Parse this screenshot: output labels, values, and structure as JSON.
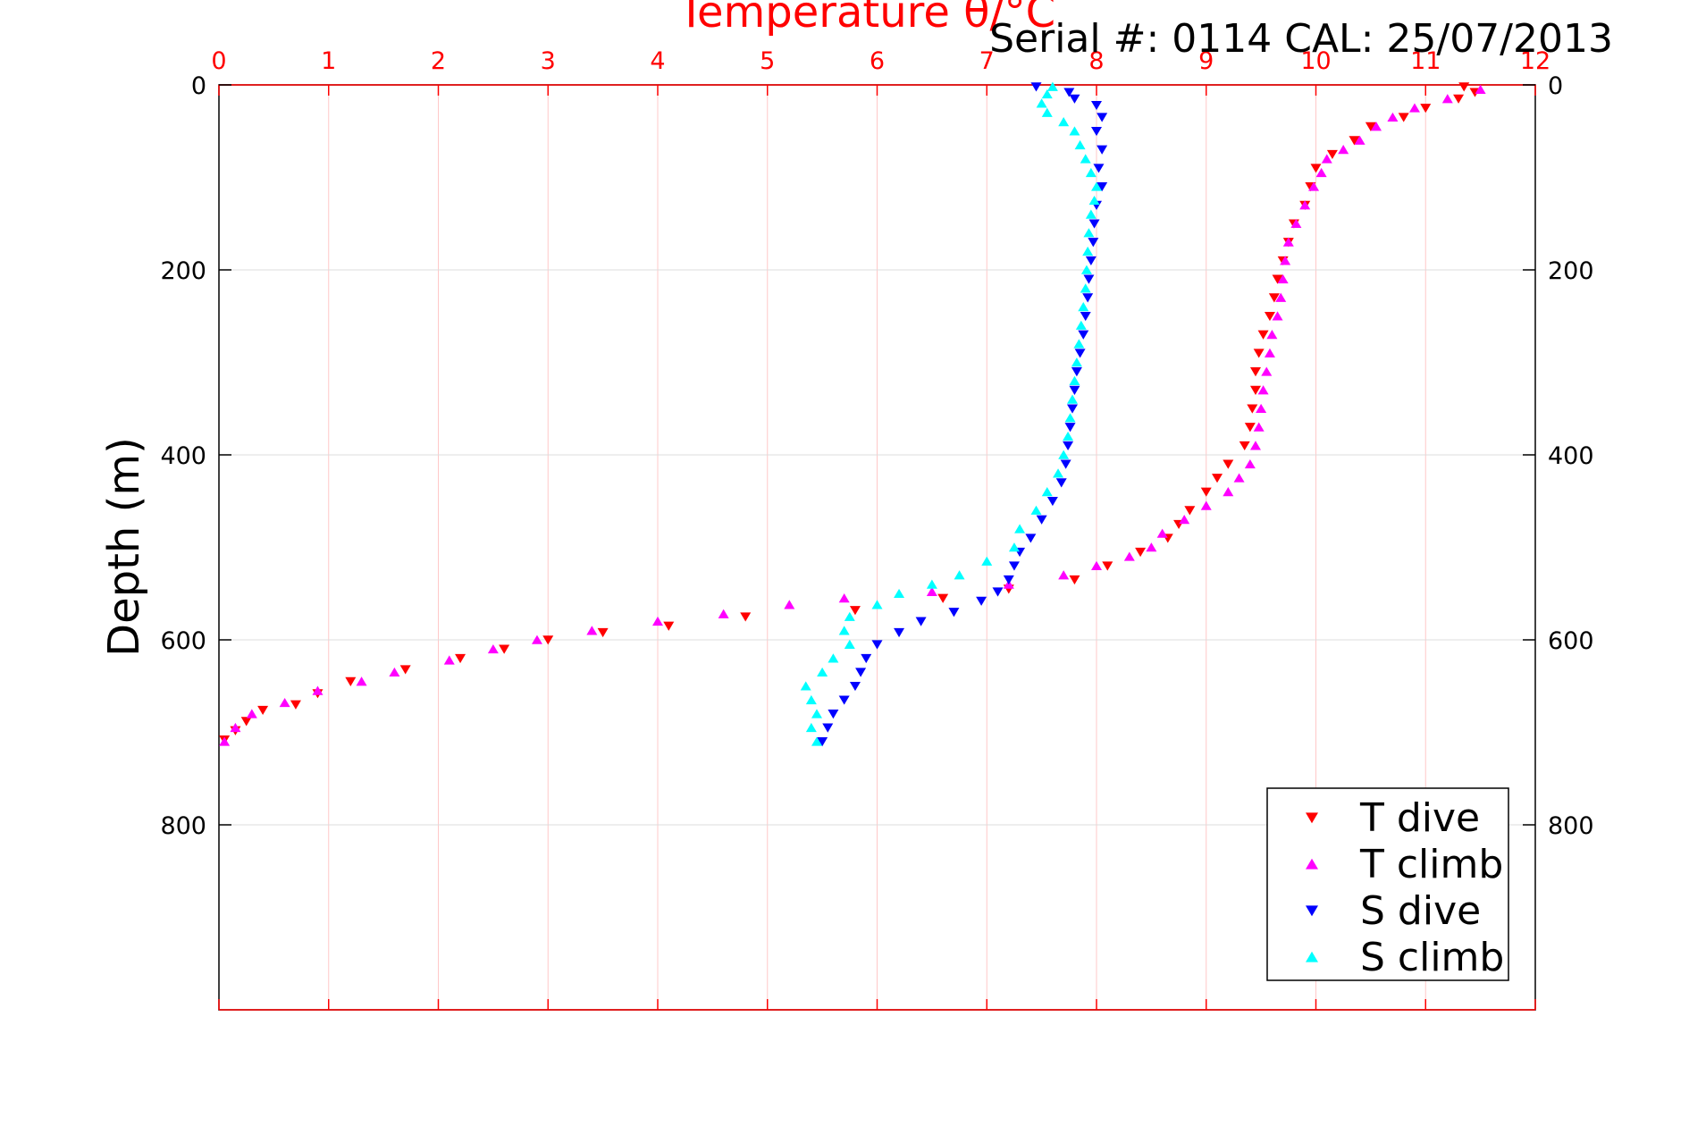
{
  "chart_data": {
    "type": "scatter",
    "title": "Temperature θ/°C",
    "annotation": "Serial #: 0114  CAL: 25/07/2013",
    "xlabel": "Temperature θ/°C",
    "ylabel": "Depth (m)",
    "xlim": [
      0,
      12
    ],
    "ylim": [
      0,
      1000
    ],
    "y_reversed": true,
    "x_ticks": [
      0,
      1,
      2,
      3,
      4,
      5,
      6,
      7,
      8,
      9,
      10,
      11,
      12
    ],
    "y_ticks": [
      0,
      200,
      400,
      600,
      800
    ],
    "x_axis_position": "top",
    "y_axis_position": "left and right",
    "grid": true,
    "legend_position": "bottom-right",
    "series": [
      {
        "name": "T dive",
        "color": "#ff0000",
        "marker": "triangle-down",
        "points": [
          [
            11.35,
            2
          ],
          [
            11.45,
            8
          ],
          [
            11.3,
            15
          ],
          [
            11.0,
            25
          ],
          [
            10.8,
            35
          ],
          [
            10.5,
            45
          ],
          [
            10.35,
            60
          ],
          [
            10.15,
            75
          ],
          [
            10.0,
            90
          ],
          [
            9.95,
            110
          ],
          [
            9.9,
            130
          ],
          [
            9.8,
            150
          ],
          [
            9.75,
            170
          ],
          [
            9.7,
            190
          ],
          [
            9.65,
            210
          ],
          [
            9.62,
            230
          ],
          [
            9.58,
            250
          ],
          [
            9.52,
            270
          ],
          [
            9.48,
            290
          ],
          [
            9.45,
            310
          ],
          [
            9.45,
            330
          ],
          [
            9.42,
            350
          ],
          [
            9.4,
            370
          ],
          [
            9.35,
            390
          ],
          [
            9.2,
            410
          ],
          [
            9.1,
            425
          ],
          [
            9.0,
            440
          ],
          [
            8.85,
            460
          ],
          [
            8.75,
            475
          ],
          [
            8.65,
            490
          ],
          [
            8.4,
            505
          ],
          [
            8.1,
            520
          ],
          [
            7.8,
            535
          ],
          [
            7.2,
            545
          ],
          [
            6.6,
            555
          ],
          [
            5.8,
            568
          ],
          [
            4.8,
            575
          ],
          [
            4.1,
            585
          ],
          [
            3.5,
            592
          ],
          [
            3.0,
            600
          ],
          [
            2.6,
            610
          ],
          [
            2.2,
            620
          ],
          [
            1.7,
            632
          ],
          [
            1.2,
            645
          ],
          [
            0.9,
            658
          ],
          [
            0.7,
            670
          ],
          [
            0.4,
            676
          ],
          [
            0.25,
            688
          ],
          [
            0.15,
            698
          ],
          [
            0.05,
            708
          ]
        ]
      },
      {
        "name": "T climb",
        "color": "#ff00ff",
        "marker": "triangle-up",
        "points": [
          [
            11.5,
            5
          ],
          [
            11.2,
            15
          ],
          [
            10.9,
            25
          ],
          [
            10.7,
            35
          ],
          [
            10.55,
            45
          ],
          [
            10.4,
            60
          ],
          [
            10.25,
            70
          ],
          [
            10.1,
            80
          ],
          [
            10.05,
            95
          ],
          [
            9.98,
            110
          ],
          [
            9.9,
            130
          ],
          [
            9.82,
            150
          ],
          [
            9.75,
            170
          ],
          [
            9.72,
            190
          ],
          [
            9.7,
            210
          ],
          [
            9.68,
            230
          ],
          [
            9.65,
            250
          ],
          [
            9.6,
            270
          ],
          [
            9.58,
            290
          ],
          [
            9.55,
            310
          ],
          [
            9.52,
            330
          ],
          [
            9.5,
            350
          ],
          [
            9.48,
            370
          ],
          [
            9.45,
            390
          ],
          [
            9.4,
            410
          ],
          [
            9.3,
            425
          ],
          [
            9.2,
            440
          ],
          [
            9.0,
            455
          ],
          [
            8.8,
            470
          ],
          [
            8.6,
            485
          ],
          [
            8.5,
            500
          ],
          [
            8.3,
            510
          ],
          [
            8.0,
            520
          ],
          [
            7.7,
            530
          ],
          [
            7.2,
            540
          ],
          [
            6.5,
            548
          ],
          [
            5.7,
            555
          ],
          [
            5.2,
            562
          ],
          [
            4.6,
            572
          ],
          [
            4.0,
            580
          ],
          [
            3.4,
            590
          ],
          [
            2.9,
            600
          ],
          [
            2.5,
            610
          ],
          [
            2.1,
            622
          ],
          [
            1.6,
            635
          ],
          [
            1.3,
            645
          ],
          [
            0.9,
            655
          ],
          [
            0.6,
            668
          ],
          [
            0.3,
            680
          ],
          [
            0.15,
            695
          ],
          [
            0.05,
            710
          ]
        ]
      },
      {
        "name": "S dive",
        "color": "#0000ff",
        "marker": "triangle-down",
        "points": [
          [
            7.45,
            2
          ],
          [
            7.75,
            8
          ],
          [
            7.8,
            15
          ],
          [
            8.0,
            22
          ],
          [
            8.05,
            35
          ],
          [
            8.0,
            50
          ],
          [
            8.05,
            70
          ],
          [
            8.02,
            90
          ],
          [
            8.05,
            110
          ],
          [
            8.0,
            130
          ],
          [
            7.98,
            150
          ],
          [
            7.97,
            170
          ],
          [
            7.95,
            190
          ],
          [
            7.93,
            210
          ],
          [
            7.92,
            230
          ],
          [
            7.9,
            250
          ],
          [
            7.88,
            270
          ],
          [
            7.85,
            290
          ],
          [
            7.82,
            310
          ],
          [
            7.8,
            330
          ],
          [
            7.78,
            350
          ],
          [
            7.76,
            370
          ],
          [
            7.74,
            390
          ],
          [
            7.72,
            410
          ],
          [
            7.68,
            430
          ],
          [
            7.6,
            450
          ],
          [
            7.5,
            470
          ],
          [
            7.4,
            490
          ],
          [
            7.3,
            505
          ],
          [
            7.25,
            520
          ],
          [
            7.2,
            535
          ],
          [
            7.1,
            548
          ],
          [
            6.95,
            558
          ],
          [
            6.7,
            570
          ],
          [
            6.4,
            580
          ],
          [
            6.2,
            592
          ],
          [
            6.0,
            605
          ],
          [
            5.9,
            620
          ],
          [
            5.85,
            635
          ],
          [
            5.8,
            650
          ],
          [
            5.7,
            665
          ],
          [
            5.6,
            680
          ],
          [
            5.55,
            695
          ],
          [
            5.5,
            710
          ]
        ]
      },
      {
        "name": "S climb",
        "color": "#00ffff",
        "marker": "triangle-up",
        "points": [
          [
            7.6,
            2
          ],
          [
            7.55,
            10
          ],
          [
            7.5,
            20
          ],
          [
            7.55,
            30
          ],
          [
            7.7,
            40
          ],
          [
            7.8,
            50
          ],
          [
            7.85,
            65
          ],
          [
            7.9,
            80
          ],
          [
            7.95,
            95
          ],
          [
            8.0,
            110
          ],
          [
            7.98,
            125
          ],
          [
            7.95,
            140
          ],
          [
            7.93,
            160
          ],
          [
            7.92,
            180
          ],
          [
            7.91,
            200
          ],
          [
            7.9,
            220
          ],
          [
            7.88,
            240
          ],
          [
            7.86,
            260
          ],
          [
            7.84,
            280
          ],
          [
            7.82,
            300
          ],
          [
            7.8,
            320
          ],
          [
            7.78,
            340
          ],
          [
            7.76,
            360
          ],
          [
            7.74,
            380
          ],
          [
            7.7,
            400
          ],
          [
            7.65,
            420
          ],
          [
            7.55,
            440
          ],
          [
            7.45,
            460
          ],
          [
            7.3,
            480
          ],
          [
            7.25,
            500
          ],
          [
            7.0,
            515
          ],
          [
            6.75,
            530
          ],
          [
            6.5,
            540
          ],
          [
            6.2,
            550
          ],
          [
            6.0,
            562
          ],
          [
            5.75,
            575
          ],
          [
            5.7,
            590
          ],
          [
            5.75,
            605
          ],
          [
            5.6,
            620
          ],
          [
            5.5,
            635
          ],
          [
            5.35,
            650
          ],
          [
            5.4,
            665
          ],
          [
            5.45,
            680
          ],
          [
            5.4,
            695
          ],
          [
            5.45,
            710
          ]
        ]
      }
    ]
  }
}
